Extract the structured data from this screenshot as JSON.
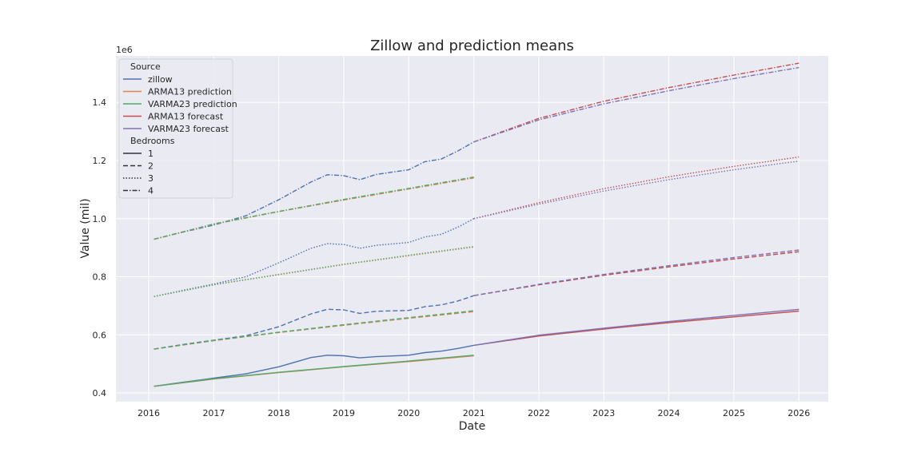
{
  "chart_data": {
    "type": "line",
    "title": "Zillow and prediction means",
    "xlabel": "Date",
    "ylabel": "Value (mil)",
    "y_offset_label": "1e6",
    "xlim": [
      "2015-07-01",
      "2026-06-15"
    ],
    "ylim": [
      370000,
      1560000
    ],
    "x_ticks": [
      "2016",
      "2017",
      "2018",
      "2019",
      "2020",
      "2021",
      "2022",
      "2023",
      "2024",
      "2025",
      "2026"
    ],
    "y_ticks": [
      {
        "value": 400000,
        "label": "0.4"
      },
      {
        "value": 600000,
        "label": "0.6"
      },
      {
        "value": 800000,
        "label": "0.8"
      },
      {
        "value": 1000000,
        "label": "1.0"
      },
      {
        "value": 1200000,
        "label": "1.2"
      },
      {
        "value": 1400000,
        "label": "1.4"
      }
    ],
    "grid": true,
    "legend": {
      "position": "upper-left",
      "hue_title": "Source",
      "style_title": "Bedrooms",
      "hue_entries": [
        {
          "label": "zillow",
          "color": "#4c72b0"
        },
        {
          "label": "ARMA13 prediction",
          "color": "#dd8452"
        },
        {
          "label": "VARMA23 prediction",
          "color": "#55a868"
        },
        {
          "label": "ARMA13 forecast",
          "color": "#c44e52"
        },
        {
          "label": "VARMA23 forecast",
          "color": "#8172b3"
        }
      ],
      "style_entries": [
        {
          "label": "1",
          "dash": "solid"
        },
        {
          "label": "2",
          "dash": "dashed"
        },
        {
          "label": "3",
          "dash": "dotted"
        },
        {
          "label": "4",
          "dash": "dashdot"
        }
      ]
    },
    "series": [
      {
        "source": "zillow",
        "bedrooms": "1",
        "color": "#4c72b0",
        "dash": "solid",
        "points": [
          [
            "2016-01-31",
            423000
          ],
          [
            "2016-07-01",
            436000
          ],
          [
            "2017-01-01",
            451000
          ],
          [
            "2017-07-01",
            466000
          ],
          [
            "2018-01-01",
            490000
          ],
          [
            "2018-07-01",
            522000
          ],
          [
            "2018-10-01",
            530000
          ],
          [
            "2019-01-01",
            528000
          ],
          [
            "2019-04-01",
            521000
          ],
          [
            "2019-07-01",
            525000
          ],
          [
            "2020-01-01",
            530000
          ],
          [
            "2020-04-01",
            539000
          ],
          [
            "2020-07-01",
            544000
          ],
          [
            "2020-10-01",
            553000
          ],
          [
            "2021-01-01",
            564000
          ]
        ]
      },
      {
        "source": "ARMA13 prediction",
        "bedrooms": "1",
        "color": "#dd8452",
        "dash": "solid",
        "points": [
          [
            "2016-01-31",
            423000
          ],
          [
            "2017-01-01",
            448000
          ],
          [
            "2018-01-01",
            470000
          ],
          [
            "2019-01-01",
            490000
          ],
          [
            "2020-01-01",
            508000
          ],
          [
            "2021-01-01",
            528000
          ]
        ]
      },
      {
        "source": "VARMA23 prediction",
        "bedrooms": "1",
        "color": "#55a868",
        "dash": "solid",
        "points": [
          [
            "2016-01-31",
            423000
          ],
          [
            "2017-01-01",
            449000
          ],
          [
            "2018-01-01",
            471000
          ],
          [
            "2019-01-01",
            491000
          ],
          [
            "2020-01-01",
            510000
          ],
          [
            "2021-01-01",
            530000
          ]
        ]
      },
      {
        "source": "ARMA13 forecast",
        "bedrooms": "1",
        "color": "#c44e52",
        "dash": "solid",
        "points": [
          [
            "2021-01-01",
            564000
          ],
          [
            "2022-01-01",
            596000
          ],
          [
            "2023-01-01",
            620000
          ],
          [
            "2024-01-01",
            642000
          ],
          [
            "2025-01-01",
            662000
          ],
          [
            "2026-01-01",
            682000
          ]
        ]
      },
      {
        "source": "VARMA23 forecast",
        "bedrooms": "1",
        "color": "#8172b3",
        "dash": "solid",
        "points": [
          [
            "2021-01-01",
            564000
          ],
          [
            "2022-01-01",
            599000
          ],
          [
            "2023-01-01",
            623000
          ],
          [
            "2024-01-01",
            646000
          ],
          [
            "2025-01-01",
            667000
          ],
          [
            "2026-01-01",
            688000
          ]
        ]
      },
      {
        "source": "zillow",
        "bedrooms": "2",
        "color": "#4c72b0",
        "dash": "dashed",
        "points": [
          [
            "2016-01-31",
            551000
          ],
          [
            "2016-07-01",
            566000
          ],
          [
            "2017-01-01",
            582000
          ],
          [
            "2017-07-01",
            597000
          ],
          [
            "2018-01-01",
            628000
          ],
          [
            "2018-07-01",
            672000
          ],
          [
            "2018-10-01",
            688000
          ],
          [
            "2019-01-01",
            686000
          ],
          [
            "2019-04-01",
            674000
          ],
          [
            "2019-07-01",
            681000
          ],
          [
            "2020-01-01",
            684000
          ],
          [
            "2020-04-01",
            697000
          ],
          [
            "2020-07-01",
            703000
          ],
          [
            "2020-10-01",
            716000
          ],
          [
            "2021-01-01",
            735000
          ]
        ]
      },
      {
        "source": "ARMA13 prediction",
        "bedrooms": "2",
        "color": "#dd8452",
        "dash": "dashed",
        "points": [
          [
            "2016-01-31",
            551000
          ],
          [
            "2017-01-01",
            580000
          ],
          [
            "2018-01-01",
            608000
          ],
          [
            "2019-01-01",
            633000
          ],
          [
            "2020-01-01",
            657000
          ],
          [
            "2021-01-01",
            680000
          ]
        ]
      },
      {
        "source": "VARMA23 prediction",
        "bedrooms": "2",
        "color": "#55a868",
        "dash": "dashed",
        "points": [
          [
            "2016-01-31",
            551000
          ],
          [
            "2017-01-01",
            581000
          ],
          [
            "2018-01-01",
            609000
          ],
          [
            "2019-01-01",
            635000
          ],
          [
            "2020-01-01",
            659000
          ],
          [
            "2021-01-01",
            683000
          ]
        ]
      },
      {
        "source": "ARMA13 forecast",
        "bedrooms": "2",
        "color": "#c44e52",
        "dash": "dashed",
        "points": [
          [
            "2021-01-01",
            735000
          ],
          [
            "2022-01-01",
            772000
          ],
          [
            "2023-01-01",
            805000
          ],
          [
            "2024-01-01",
            834000
          ],
          [
            "2025-01-01",
            861000
          ],
          [
            "2026-01-01",
            886000
          ]
        ]
      },
      {
        "source": "VARMA23 forecast",
        "bedrooms": "2",
        "color": "#8172b3",
        "dash": "dashed",
        "points": [
          [
            "2021-01-01",
            735000
          ],
          [
            "2022-01-01",
            774000
          ],
          [
            "2023-01-01",
            808000
          ],
          [
            "2024-01-01",
            838000
          ],
          [
            "2025-01-01",
            866000
          ],
          [
            "2026-01-01",
            892000
          ]
        ]
      },
      {
        "source": "zillow",
        "bedrooms": "3",
        "color": "#4c72b0",
        "dash": "dotted",
        "points": [
          [
            "2016-01-31",
            732000
          ],
          [
            "2016-07-01",
            752000
          ],
          [
            "2017-01-01",
            775000
          ],
          [
            "2017-07-01",
            800000
          ],
          [
            "2018-01-01",
            848000
          ],
          [
            "2018-07-01",
            898000
          ],
          [
            "2018-10-01",
            914000
          ],
          [
            "2019-01-01",
            911000
          ],
          [
            "2019-04-01",
            898000
          ],
          [
            "2019-07-01",
            908000
          ],
          [
            "2020-01-01",
            918000
          ],
          [
            "2020-04-01",
            937000
          ],
          [
            "2020-07-01",
            946000
          ],
          [
            "2020-10-01",
            970000
          ],
          [
            "2021-01-01",
            1000000
          ]
        ]
      },
      {
        "source": "ARMA13 prediction",
        "bedrooms": "3",
        "color": "#dd8452",
        "dash": "dotted",
        "points": [
          [
            "2016-01-31",
            732000
          ],
          [
            "2017-01-01",
            772000
          ],
          [
            "2018-01-01",
            807000
          ],
          [
            "2019-01-01",
            842000
          ],
          [
            "2020-01-01",
            872000
          ],
          [
            "2021-01-01",
            902000
          ]
        ]
      },
      {
        "source": "VARMA23 prediction",
        "bedrooms": "3",
        "color": "#55a868",
        "dash": "dotted",
        "points": [
          [
            "2016-01-31",
            732000
          ],
          [
            "2017-01-01",
            773000
          ],
          [
            "2018-01-01",
            808000
          ],
          [
            "2019-01-01",
            843000
          ],
          [
            "2020-01-01",
            874000
          ],
          [
            "2021-01-01",
            904000
          ]
        ]
      },
      {
        "source": "ARMA13 forecast",
        "bedrooms": "3",
        "color": "#c44e52",
        "dash": "dotted",
        "points": [
          [
            "2021-01-01",
            1000000
          ],
          [
            "2022-01-01",
            1055000
          ],
          [
            "2023-01-01",
            1103000
          ],
          [
            "2024-01-01",
            1144000
          ],
          [
            "2025-01-01",
            1180000
          ],
          [
            "2026-01-01",
            1212000
          ]
        ]
      },
      {
        "source": "VARMA23 forecast",
        "bedrooms": "3",
        "color": "#8172b3",
        "dash": "dotted",
        "points": [
          [
            "2021-01-01",
            1000000
          ],
          [
            "2022-01-01",
            1050000
          ],
          [
            "2023-01-01",
            1095000
          ],
          [
            "2024-01-01",
            1134000
          ],
          [
            "2025-01-01",
            1168000
          ],
          [
            "2026-01-01",
            1198000
          ]
        ]
      },
      {
        "source": "zillow",
        "bedrooms": "4",
        "color": "#4c72b0",
        "dash": "dashdot",
        "points": [
          [
            "2016-01-31",
            929000
          ],
          [
            "2016-07-01",
            952000
          ],
          [
            "2017-01-01",
            978000
          ],
          [
            "2017-07-01",
            1010000
          ],
          [
            "2018-01-01",
            1065000
          ],
          [
            "2018-07-01",
            1126000
          ],
          [
            "2018-10-01",
            1151000
          ],
          [
            "2019-01-01",
            1148000
          ],
          [
            "2019-04-01",
            1134000
          ],
          [
            "2019-07-01",
            1152000
          ],
          [
            "2020-01-01",
            1168000
          ],
          [
            "2020-04-01",
            1196000
          ],
          [
            "2020-07-01",
            1205000
          ],
          [
            "2020-10-01",
            1232000
          ],
          [
            "2021-01-01",
            1264000
          ]
        ]
      },
      {
        "source": "ARMA13 prediction",
        "bedrooms": "4",
        "color": "#dd8452",
        "dash": "dashdot",
        "points": [
          [
            "2016-01-31",
            929000
          ],
          [
            "2017-01-01",
            981000
          ],
          [
            "2018-01-01",
            1024000
          ],
          [
            "2019-01-01",
            1064000
          ],
          [
            "2020-01-01",
            1102000
          ],
          [
            "2021-01-01",
            1140000
          ]
        ]
      },
      {
        "source": "VARMA23 prediction",
        "bedrooms": "4",
        "color": "#55a868",
        "dash": "dashdot",
        "points": [
          [
            "2016-01-31",
            929000
          ],
          [
            "2017-01-01",
            982000
          ],
          [
            "2018-01-01",
            1025000
          ],
          [
            "2019-01-01",
            1066000
          ],
          [
            "2020-01-01",
            1104000
          ],
          [
            "2021-01-01",
            1143000
          ]
        ]
      },
      {
        "source": "ARMA13 forecast",
        "bedrooms": "4",
        "color": "#c44e52",
        "dash": "dashdot",
        "points": [
          [
            "2021-01-01",
            1264000
          ],
          [
            "2022-01-01",
            1345000
          ],
          [
            "2023-01-01",
            1404000
          ],
          [
            "2024-01-01",
            1451000
          ],
          [
            "2025-01-01",
            1494000
          ],
          [
            "2026-01-01",
            1535000
          ]
        ]
      },
      {
        "source": "VARMA23 forecast",
        "bedrooms": "4",
        "color": "#8172b3",
        "dash": "dashdot",
        "points": [
          [
            "2021-01-01",
            1264000
          ],
          [
            "2022-01-01",
            1340000
          ],
          [
            "2023-01-01",
            1395000
          ],
          [
            "2024-01-01",
            1440000
          ],
          [
            "2025-01-01",
            1482000
          ],
          [
            "2026-01-01",
            1520000
          ]
        ]
      }
    ]
  }
}
